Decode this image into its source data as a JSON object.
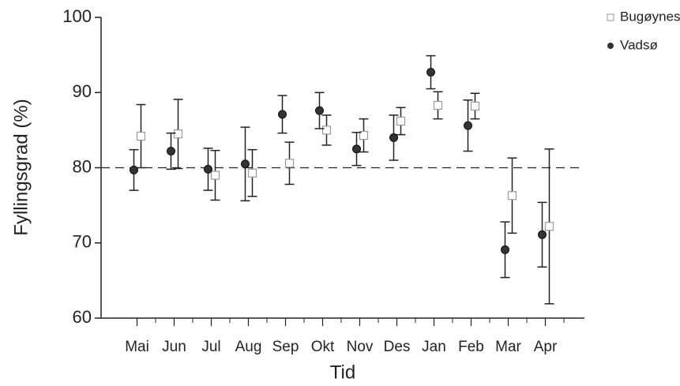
{
  "chart_data": {
    "type": "errorbar",
    "x_label": "Tid",
    "y_label": "Fyllingsgrad (%)",
    "categories": [
      "Mai",
      "Jun",
      "Jul",
      "Aug",
      "Sep",
      "Okt",
      "Nov",
      "Des",
      "Jan",
      "Feb",
      "Mar",
      "Apr"
    ],
    "series": [
      {
        "name": "Bugøynes",
        "color": "#999999",
        "marker": "open-square",
        "values": [
          84.2,
          84.5,
          79.0,
          79.3,
          80.6,
          85.0,
          84.3,
          86.2,
          88.3,
          88.2,
          76.3,
          72.2
        ],
        "errors": [
          4.2,
          4.6,
          3.3,
          3.1,
          2.8,
          2.0,
          2.2,
          1.8,
          1.8,
          1.7,
          5.0,
          10.3
        ]
      },
      {
        "name": "Vadsø",
        "color": "#333333",
        "marker": "filled-circle",
        "values": [
          79.7,
          82.2,
          79.8,
          80.5,
          87.1,
          87.6,
          82.5,
          84.0,
          92.7,
          85.6,
          69.1,
          71.1
        ],
        "errors": [
          2.7,
          2.4,
          2.8,
          4.9,
          2.5,
          2.4,
          2.2,
          3.0,
          2.2,
          3.4,
          3.7,
          4.3
        ]
      }
    ],
    "reference_line": 80,
    "ylim": [
      60,
      100
    ],
    "yticks": [
      60,
      70,
      80,
      90,
      100
    ],
    "legend": "upper right"
  }
}
